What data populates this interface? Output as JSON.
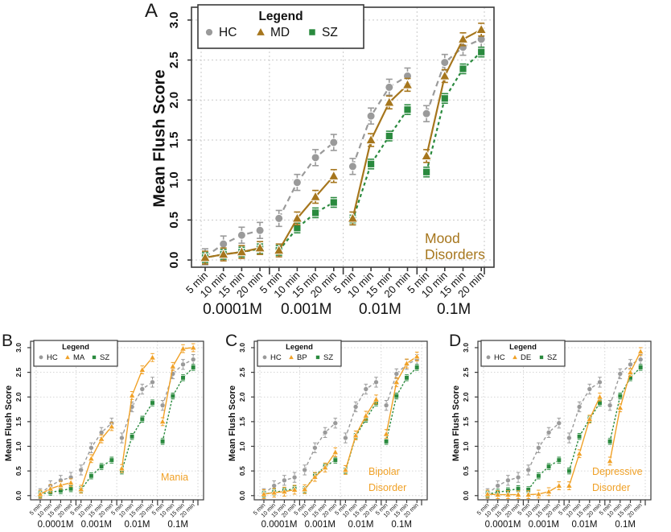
{
  "colors": {
    "hc_gray": "#9a9a9a",
    "mood_brown": "#a6761d",
    "orange": "#f0a127",
    "sz_green": "#2a8a3e",
    "axis": "#3a3a3a",
    "grid": "#c9c9c9",
    "background": "#ffffff"
  },
  "chart_data": [
    {
      "type": "line",
      "label": "A",
      "ylabel": "Mean Flush Score",
      "ylim": [
        0,
        3
      ],
      "yticks": [
        "0.0",
        "0.5",
        "1.0",
        "1.5",
        "2.0",
        "2.5",
        "3.0"
      ],
      "timepoints": [
        "5 min",
        "10 min",
        "15 min",
        "20 min"
      ],
      "doses": [
        "0.0001M",
        "0.001M",
        "0.01M",
        "0.1M"
      ],
      "legend_title": "Legend",
      "grid": true,
      "annotation": {
        "lines": [
          "Mood",
          "Disorders"
        ],
        "color": "#a6761d"
      },
      "series": [
        {
          "name": "HC",
          "marker": "circle",
          "color": "#9a9a9a",
          "dashed": true,
          "err": 0.1,
          "values": [
            [
              0.04,
              0.2,
              0.31,
              0.37
            ],
            [
              0.52,
              0.97,
              1.28,
              1.47
            ],
            [
              1.17,
              1.8,
              2.16,
              2.3
            ],
            [
              1.83,
              2.47,
              2.66,
              2.76
            ]
          ]
        },
        {
          "name": "MD",
          "marker": "triangle",
          "color": "#a6761d",
          "dashed": false,
          "err": 0.08,
          "values": [
            [
              0.03,
              0.07,
              0.1,
              0.15
            ],
            [
              0.12,
              0.52,
              0.79,
              1.05
            ],
            [
              0.52,
              1.5,
              1.97,
              2.19
            ],
            [
              1.3,
              2.3,
              2.76,
              2.88
            ]
          ]
        },
        {
          "name": "SZ",
          "marker": "square",
          "color": "#2a8a3e",
          "dashed": true,
          "err": 0.06,
          "values": [
            [
              0.03,
              0.07,
              0.1,
              0.14
            ],
            [
              0.12,
              0.4,
              0.59,
              0.72
            ],
            [
              0.5,
              1.2,
              1.55,
              1.88
            ],
            [
              1.1,
              2.02,
              2.39,
              2.6
            ]
          ]
        }
      ]
    },
    {
      "type": "line",
      "label": "B",
      "ylabel": "Mean Flush Score",
      "ylim": [
        0,
        3
      ],
      "yticks": [
        "0.0",
        "0.5",
        "1.0",
        "1.5",
        "2.0",
        "2.5",
        "3.0"
      ],
      "timepoints": [
        "5 min",
        "10 min",
        "15 min",
        "20 min"
      ],
      "doses": [
        "0.0001M",
        "0.001M",
        "0.01M",
        "0.1M"
      ],
      "legend_title": "Legend",
      "grid": true,
      "annotation": {
        "lines": [
          "Mania"
        ],
        "color": "#f0a127"
      },
      "series": [
        {
          "name": "HC",
          "marker": "circle",
          "color": "#9a9a9a",
          "dashed": true,
          "err": 0.1,
          "values": [
            [
              0.04,
              0.2,
              0.31,
              0.37
            ],
            [
              0.52,
              0.97,
              1.28,
              1.47
            ],
            [
              1.17,
              1.8,
              2.16,
              2.3
            ],
            [
              1.83,
              2.47,
              2.66,
              2.76
            ]
          ]
        },
        {
          "name": "MA",
          "marker": "triangle",
          "color": "#f0a127",
          "dashed": false,
          "err": 0.08,
          "values": [
            [
              0.03,
              0.14,
              0.21,
              0.26
            ],
            [
              0.13,
              0.75,
              1.15,
              1.4
            ],
            [
              0.55,
              2.03,
              2.55,
              2.8
            ],
            [
              1.5,
              2.62,
              2.98,
              3.0
            ]
          ]
        },
        {
          "name": "SZ",
          "marker": "square",
          "color": "#2a8a3e",
          "dashed": true,
          "err": 0.06,
          "values": [
            [
              0.03,
              0.07,
              0.1,
              0.14
            ],
            [
              0.12,
              0.4,
              0.59,
              0.72
            ],
            [
              0.5,
              1.2,
              1.55,
              1.88
            ],
            [
              1.1,
              2.02,
              2.39,
              2.6
            ]
          ]
        }
      ]
    },
    {
      "type": "line",
      "label": "C",
      "ylabel": "Mean Flush Score",
      "ylim": [
        0,
        3
      ],
      "yticks": [
        "0.0",
        "0.5",
        "1.0",
        "1.5",
        "2.0",
        "2.5",
        "3.0"
      ],
      "timepoints": [
        "5 min",
        "10 min",
        "15 min",
        "20 min"
      ],
      "doses": [
        "0.0001M",
        "0.001M",
        "0.01M",
        "0.1M"
      ],
      "legend_title": "Legend",
      "grid": true,
      "annotation": {
        "lines": [
          "Bipolar",
          "Disorder"
        ],
        "color": "#f0a127"
      },
      "series": [
        {
          "name": "HC",
          "marker": "circle",
          "color": "#9a9a9a",
          "dashed": true,
          "err": 0.1,
          "values": [
            [
              0.04,
              0.2,
              0.31,
              0.37
            ],
            [
              0.52,
              0.97,
              1.28,
              1.47
            ],
            [
              1.17,
              1.8,
              2.16,
              2.3
            ],
            [
              1.83,
              2.47,
              2.66,
              2.76
            ]
          ]
        },
        {
          "name": "BP",
          "marker": "triangle",
          "color": "#f0a127",
          "dashed": false,
          "err": 0.09,
          "values": [
            [
              0.03,
              0.06,
              0.08,
              0.12
            ],
            [
              0.13,
              0.38,
              0.57,
              0.88
            ],
            [
              0.52,
              1.22,
              1.62,
              1.95
            ],
            [
              1.25,
              2.3,
              2.68,
              2.82
            ]
          ]
        },
        {
          "name": "SZ",
          "marker": "square",
          "color": "#2a8a3e",
          "dashed": true,
          "err": 0.06,
          "values": [
            [
              0.03,
              0.07,
              0.1,
              0.14
            ],
            [
              0.12,
              0.4,
              0.59,
              0.72
            ],
            [
              0.5,
              1.2,
              1.55,
              1.88
            ],
            [
              1.1,
              2.02,
              2.39,
              2.6
            ]
          ]
        }
      ]
    },
    {
      "type": "line",
      "label": "D",
      "ylabel": "Mean Flush Score",
      "ylim": [
        0,
        3
      ],
      "yticks": [
        "0.0",
        "0.5",
        "1.0",
        "1.5",
        "2.0",
        "2.5",
        "3.0"
      ],
      "timepoints": [
        "5 min",
        "10 min",
        "15 min",
        "20 min"
      ],
      "doses": [
        "0.0001M",
        "0.001M",
        "0.01M",
        "0.1M"
      ],
      "legend_title": "Legend",
      "grid": true,
      "annotation": {
        "lines": [
          "Depressive",
          "Disorder"
        ],
        "color": "#f0a127"
      },
      "series": [
        {
          "name": "HC",
          "marker": "circle",
          "color": "#9a9a9a",
          "dashed": true,
          "err": 0.1,
          "values": [
            [
              0.04,
              0.2,
              0.31,
              0.37
            ],
            [
              0.52,
              0.97,
              1.28,
              1.47
            ],
            [
              1.17,
              1.8,
              2.16,
              2.3
            ],
            [
              1.83,
              2.47,
              2.66,
              2.76
            ]
          ]
        },
        {
          "name": "DE",
          "marker": "triangle",
          "color": "#f0a127",
          "dashed": false,
          "err": 0.08,
          "values": [
            [
              0.03,
              0.02,
              0.02,
              0.02
            ],
            [
              0.02,
              0.03,
              0.08,
              0.2
            ],
            [
              0.2,
              0.85,
              1.55,
              2.0
            ],
            [
              0.7,
              1.78,
              2.5,
              2.92
            ]
          ]
        },
        {
          "name": "SZ",
          "marker": "square",
          "color": "#2a8a3e",
          "dashed": true,
          "err": 0.06,
          "values": [
            [
              0.03,
              0.07,
              0.1,
              0.14
            ],
            [
              0.12,
              0.4,
              0.59,
              0.72
            ],
            [
              0.5,
              1.2,
              1.55,
              1.88
            ],
            [
              1.1,
              2.02,
              2.39,
              2.6
            ]
          ]
        }
      ]
    }
  ]
}
